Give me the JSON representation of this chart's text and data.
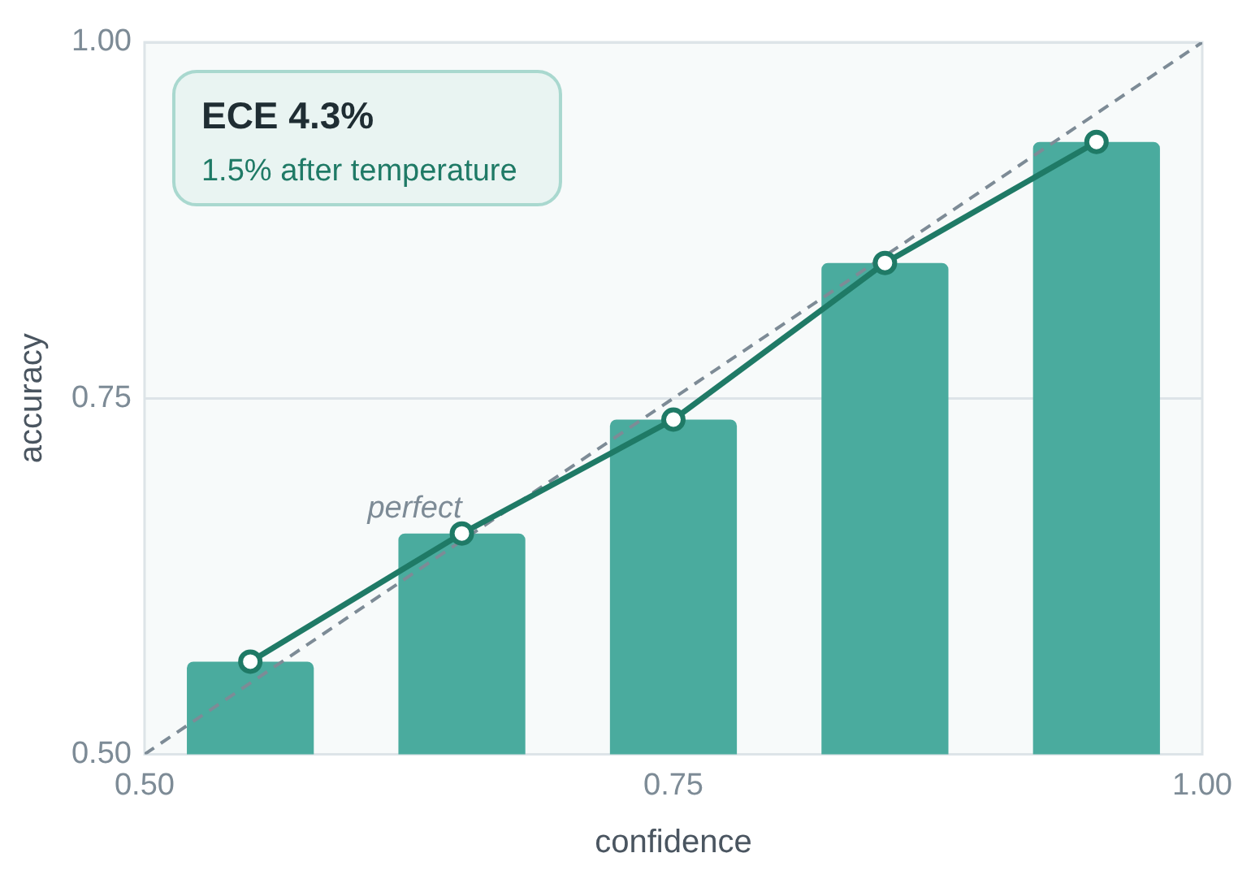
{
  "chart_data": {
    "type": "bar",
    "x": [
      0.55,
      0.65,
      0.75,
      0.85,
      0.95
    ],
    "xlabel": "confidence",
    "ylabel": "accuracy",
    "series": [
      {
        "color": "#4aab9e",
        "values": [
          0.565,
          0.655,
          0.735,
          0.845,
          0.93
        ]
      },
      {
        "type": "line",
        "color": "#1f7a66",
        "values": [
          0.565,
          0.655,
          0.735,
          0.845,
          0.93
        ],
        "marker": "circle",
        "line_style": "solid"
      },
      {
        "type": "line",
        "name": "perfect",
        "color": "#7d8b96",
        "x": [
          0.5,
          1.0
        ],
        "values": [
          0.5,
          1.0
        ],
        "marker": "none",
        "line_style": "dashed"
      }
    ],
    "xlim": [
      0.5,
      1.0
    ],
    "xticks": [
      {
        "value": 0.5,
        "label": "0.50"
      },
      {
        "value": 0.75,
        "label": "0.75"
      },
      {
        "value": 1.0,
        "label": "1.00"
      }
    ],
    "ylim": [
      0.5,
      1.0
    ],
    "yticks": [
      {
        "value": 0.5,
        "label": "0.50"
      },
      {
        "value": 0.75,
        "label": "0.75"
      },
      {
        "value": 1.0,
        "label": "1.00"
      }
    ],
    "grid": "y",
    "legend": false,
    "annotations": [
      "ECE 4.3%",
      "1.5% after temperature"
    ]
  }
}
